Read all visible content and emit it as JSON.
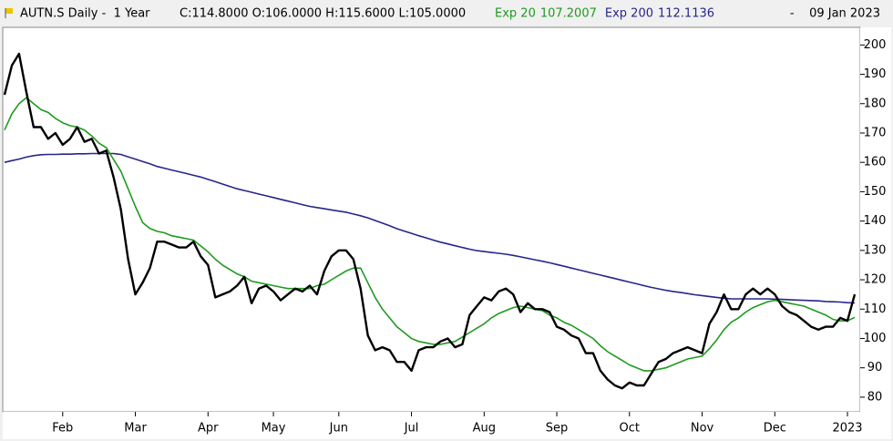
{
  "chart_data": {
    "type": "line",
    "title": "AUTN.S Daily -  1 Year",
    "quote": "C:114.8000 O:106.0000 H:115.6000 L:105.0000",
    "date": "-    09 Jan 2023",
    "categories": [
      null,
      null,
      null,
      null,
      null,
      null,
      null,
      null,
      "Feb",
      null,
      null,
      null,
      null,
      null,
      null,
      null,
      null,
      null,
      "Mar",
      null,
      null,
      null,
      null,
      null,
      null,
      null,
      null,
      null,
      "Apr",
      null,
      null,
      null,
      null,
      null,
      null,
      null,
      null,
      "May",
      null,
      null,
      null,
      null,
      null,
      null,
      null,
      null,
      "Jun",
      null,
      null,
      null,
      null,
      null,
      null,
      null,
      null,
      null,
      "Jul",
      null,
      null,
      null,
      null,
      null,
      null,
      null,
      null,
      null,
      "Aug",
      null,
      null,
      null,
      null,
      null,
      null,
      null,
      null,
      null,
      "Sep",
      null,
      null,
      null,
      null,
      null,
      null,
      null,
      null,
      null,
      "Oct",
      null,
      null,
      null,
      null,
      null,
      null,
      null,
      null,
      null,
      "Nov",
      null,
      null,
      null,
      null,
      null,
      null,
      null,
      null,
      null,
      "Dec",
      null,
      null,
      null,
      null,
      null,
      null,
      null,
      null,
      null,
      "2023",
      null
    ],
    "series": [
      {
        "color": "#000000",
        "values": [
          183,
          193,
          197,
          184,
          172,
          172,
          168,
          170,
          166,
          168,
          172,
          167,
          168,
          163,
          164,
          155,
          144,
          127,
          115,
          119,
          124,
          133,
          133,
          132,
          131,
          131,
          133,
          128,
          125,
          114,
          115,
          116,
          118,
          121,
          112,
          117,
          118,
          116,
          113,
          115,
          117,
          116,
          118,
          115,
          123,
          128,
          130,
          130,
          127,
          117,
          101,
          96,
          97,
          96,
          92,
          92,
          89,
          96,
          97,
          97,
          99,
          100,
          97,
          98,
          108,
          111,
          114,
          113,
          116,
          117,
          115,
          109,
          112,
          110,
          110,
          109,
          104,
          103,
          101,
          100,
          95,
          95,
          89,
          86,
          84,
          83,
          85,
          84,
          84,
          88,
          92,
          93,
          95,
          96,
          97,
          96,
          95,
          105,
          109,
          115,
          110,
          110,
          115,
          117,
          115,
          117,
          115,
          111,
          109,
          108,
          106,
          104,
          103,
          104,
          104,
          107,
          106,
          115
        ]
      },
      {
        "name": "Exp 20",
        "last": 107.2007,
        "color": "#1f9a1f",
        "values": [
          171,
          176.5,
          180,
          182,
          180,
          178,
          177,
          175,
          173.5,
          172.5,
          172,
          171,
          169,
          166.5,
          165,
          161,
          157,
          151,
          145,
          139.5,
          137.5,
          136.5,
          136,
          135,
          134.5,
          134,
          133.5,
          131.5,
          129.5,
          127,
          125,
          123.5,
          122,
          121,
          119.5,
          119,
          118.5,
          118,
          117.5,
          117,
          117,
          117,
          117,
          118,
          118.5,
          120,
          121.5,
          123,
          124,
          124,
          119,
          114,
          110,
          107,
          104,
          102,
          100,
          99,
          98.5,
          98,
          98,
          98.5,
          99,
          100.5,
          102,
          103.5,
          105,
          107,
          108.5,
          109.5,
          110.5,
          111,
          110.5,
          110,
          109.5,
          108,
          107,
          105.5,
          104.5,
          103,
          101.5,
          100,
          97.5,
          95.5,
          94,
          92.5,
          91,
          90,
          89,
          89,
          89.5,
          90,
          91,
          92,
          93,
          93.5,
          94,
          96.5,
          99.5,
          103,
          105.5,
          107,
          109,
          110.5,
          111.5,
          112.5,
          113,
          112.5,
          112,
          111.5,
          111,
          110,
          109,
          108,
          106.5,
          106,
          106,
          107.2
        ]
      },
      {
        "name": "Exp 200",
        "last": 112.1136,
        "color": "#26268a",
        "values": [
          160,
          160.6,
          161.1,
          161.8,
          162.3,
          162.6,
          162.7,
          162.7,
          162.8,
          162.8,
          162.9,
          162.9,
          163,
          163,
          163,
          163,
          162.7,
          161.9,
          161.1,
          160.3,
          159.5,
          158.6,
          158,
          157.4,
          156.8,
          156.2,
          155.6,
          155,
          154.2,
          153.4,
          152.6,
          151.8,
          151,
          150.4,
          149.8,
          149.2,
          148.6,
          148,
          147.4,
          146.8,
          146.2,
          145.6,
          145,
          144.6,
          144.2,
          143.8,
          143.4,
          143,
          142.4,
          141.8,
          141.1,
          140.2,
          139.3,
          138.4,
          137.4,
          136.6,
          135.8,
          135,
          134.3,
          133.5,
          132.8,
          132.2,
          131.6,
          131,
          130.4,
          129.9,
          129.6,
          129.3,
          129,
          128.7,
          128.3,
          127.8,
          127.3,
          126.8,
          126.3,
          125.8,
          125.2,
          124.6,
          124,
          123.4,
          122.8,
          122.2,
          121.6,
          121,
          120.4,
          119.8,
          119.2,
          118.6,
          118,
          117.4,
          116.9,
          116.4,
          116,
          115.7,
          115.3,
          114.9,
          114.6,
          114.3,
          114,
          113.7,
          113.5,
          113.5,
          113.5,
          113.5,
          113.5,
          113.5,
          113.4,
          113.3,
          113.2,
          113.1,
          113,
          112.9,
          112.8,
          112.6,
          112.5,
          112.4,
          112.2,
          112.1
        ]
      }
    ],
    "ylim": [
      75,
      206
    ],
    "yticks": [
      80,
      90,
      100,
      110,
      120,
      130,
      140,
      150,
      160,
      170,
      180,
      190,
      200
    ],
    "grid": false
  }
}
